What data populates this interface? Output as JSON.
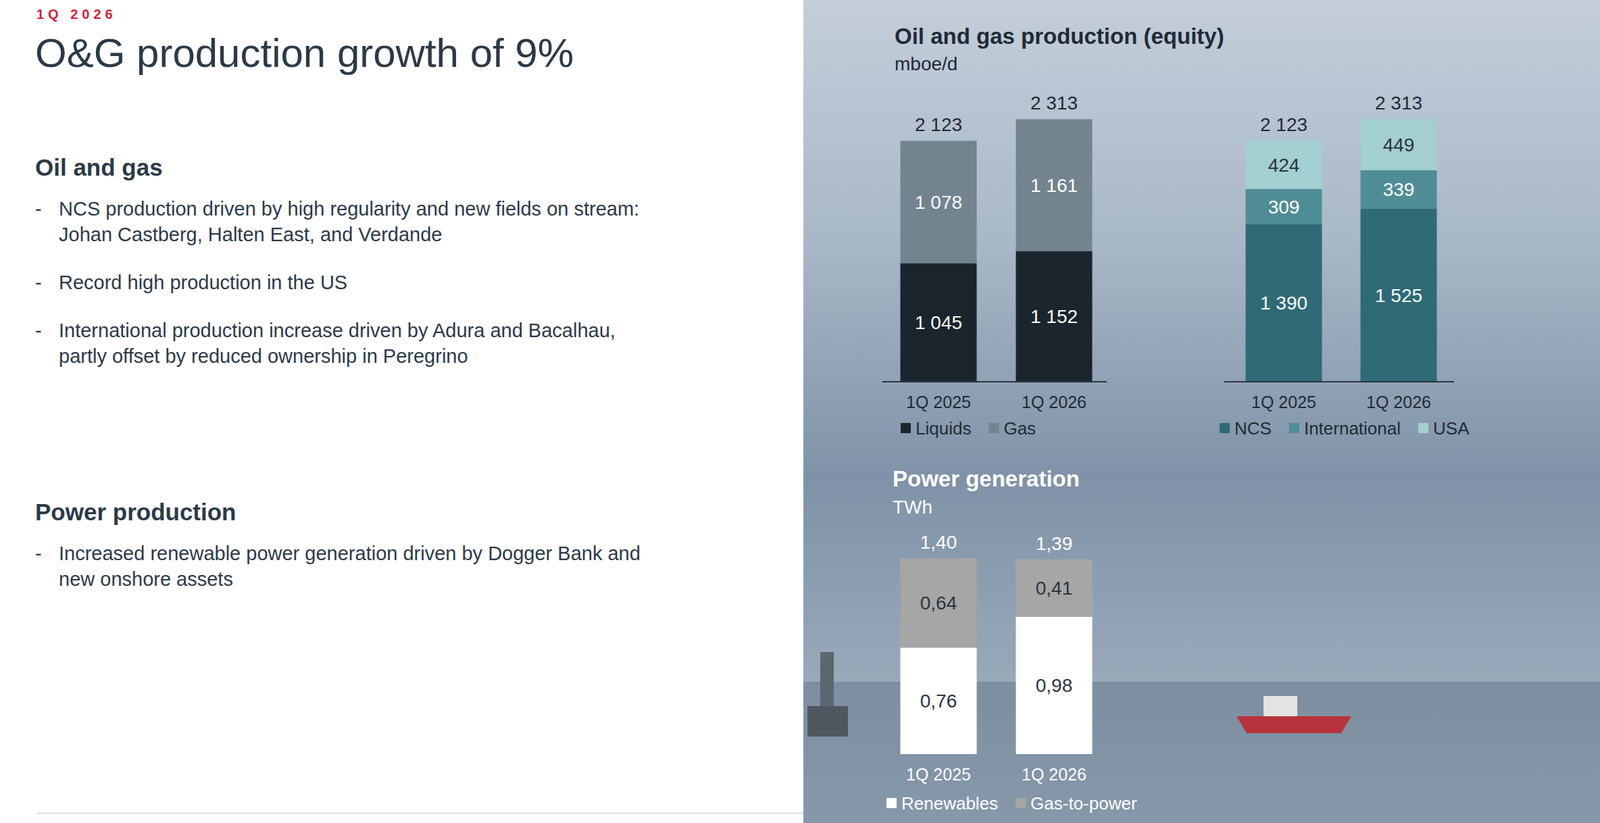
{
  "header": {
    "kicker": "1Q 2026",
    "title": "O&G production growth of 9%"
  },
  "sections": [
    {
      "heading": "Oil and gas",
      "bullets": [
        "NCS production driven by high regularity and new fields on stream: Johan Castberg, Halten East, and Verdande",
        "Record high production in the US",
        "International production increase driven by Adura and Bacalhau, partly offset by reduced ownership in Peregrino"
      ]
    },
    {
      "heading": "Power production",
      "bullets": [
        "Increased renewable power generation driven by Dogger Bank and new onshore assets"
      ]
    }
  ],
  "chart_data": [
    {
      "type": "bar",
      "title": "Oil and gas production (equity)",
      "subtitle": "mboe/d",
      "stacked": true,
      "data_labels": true,
      "tick_labels": "x",
      "legend": "bottom",
      "categories": [
        "1Q 2025",
        "1Q 2026"
      ],
      "ylim": [
        0,
        2500
      ],
      "totals": [
        2123,
        2313
      ],
      "total_labels": [
        "2 123",
        "2 313"
      ],
      "series": [
        {
          "name": "Liquids",
          "color": "#1b252e",
          "values": [
            1045,
            1152
          ],
          "value_labels": [
            "1 045",
            "1 152"
          ]
        },
        {
          "name": "Gas",
          "color": "#73848f",
          "values": [
            1078,
            1161
          ],
          "value_labels": [
            "1 078",
            "1 161"
          ]
        }
      ]
    },
    {
      "type": "bar",
      "stacked": true,
      "data_labels": true,
      "tick_labels": "x",
      "legend": "bottom",
      "categories": [
        "1Q 2025",
        "1Q 2026"
      ],
      "ylim": [
        0,
        2500
      ],
      "totals": [
        2123,
        2313
      ],
      "total_labels": [
        "2 123",
        "2 313"
      ],
      "series": [
        {
          "name": "NCS",
          "color": "#2e6b76",
          "values": [
            1390,
            1525
          ],
          "value_labels": [
            "1 390",
            "1 525"
          ]
        },
        {
          "name": "International",
          "color": "#4f8d96",
          "values": [
            309,
            339
          ]
        },
        {
          "name": "USA",
          "color": "#a3cfd1",
          "values": [
            424,
            449
          ]
        }
      ]
    },
    {
      "type": "bar",
      "title": "Power generation",
      "subtitle": "TWh",
      "stacked": true,
      "data_labels": true,
      "tick_labels": "x",
      "legend": "bottom",
      "categories": [
        "1Q 2025",
        "1Q 2026"
      ],
      "ylim": [
        0,
        1.5
      ],
      "totals": [
        1.4,
        1.39
      ],
      "total_labels": [
        "1,40",
        "1,39"
      ],
      "series": [
        {
          "name": "Renewables",
          "color": "#ffffff",
          "values": [
            0.76,
            0.98
          ],
          "value_labels": [
            "0,76",
            "0,98"
          ]
        },
        {
          "name": "Gas-to-power",
          "color": "#a6a6a6",
          "values": [
            0.64,
            0.41
          ],
          "value_labels": [
            "0,64",
            "0,41"
          ]
        }
      ]
    }
  ]
}
